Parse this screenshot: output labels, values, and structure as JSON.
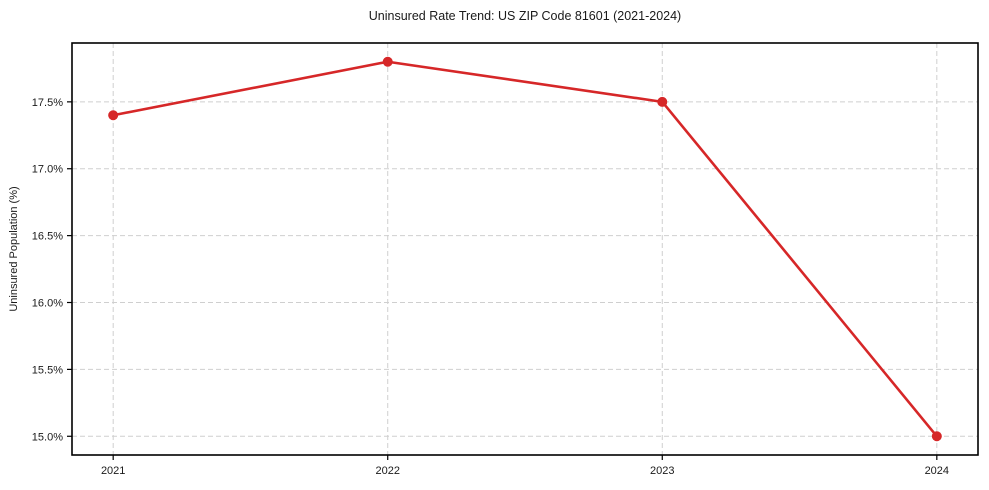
{
  "chart_data": {
    "type": "line",
    "title": "Uninsured Rate Trend: US ZIP Code 81601 (2021-2024)",
    "xlabel": "",
    "ylabel": "Uninsured Population (%)",
    "categories": [
      "2021",
      "2022",
      "2023",
      "2024"
    ],
    "values": [
      17.4,
      17.8,
      17.5,
      15.0
    ],
    "y_ticks": [
      15.0,
      15.5,
      16.0,
      16.5,
      17.0,
      17.5
    ],
    "y_tick_labels": [
      "15.0%",
      "15.5%",
      "16.0%",
      "16.5%",
      "17.0%",
      "17.5%"
    ],
    "ylim": [
      14.86,
      17.94
    ],
    "x_margin": 0.15,
    "grid": true,
    "grid_style": "dashed",
    "legend": "none",
    "line_color": "#d62728",
    "marker_color": "#d62728",
    "grid_color": "#cfcfcf",
    "axis_color": "#000000",
    "background_color": "#ffffff"
  }
}
